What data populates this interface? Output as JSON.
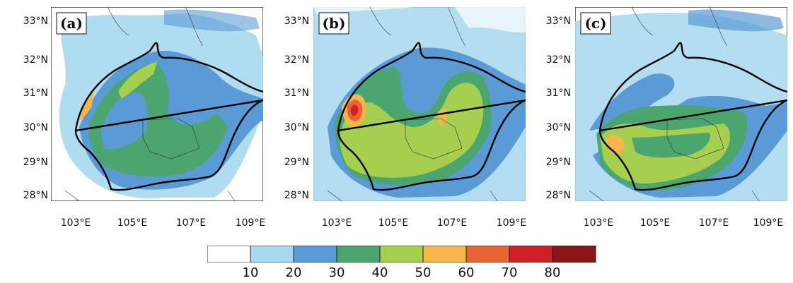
{
  "panels": [
    {
      "label": "(a)"
    },
    {
      "label": "(b)"
    },
    {
      "label": "(c)"
    }
  ],
  "lat_labels": [
    "33°N",
    "32°N",
    "31°N",
    "30°N",
    "29°N",
    "28°N"
  ],
  "lon_labels": [
    "103°E",
    "105°E",
    "107°E",
    "109°E"
  ],
  "colorbar": {
    "ticks": [
      "10",
      "20",
      "30",
      "40",
      "50",
      "60",
      "70",
      "80"
    ],
    "colors": [
      "#ffffff",
      "#a6d8f0",
      "#5b9bd5",
      "#4aa56e",
      "#a6cf50",
      "#f5b74a",
      "#ea6433",
      "#cf2027",
      "#8b1515"
    ]
  },
  "palette": {
    "c10": "#a6d8f0",
    "c20": "#5b9bd5",
    "c30": "#4aa56e",
    "c40": "#a6cf50",
    "c50": "#f5b74a",
    "c60": "#ea6433",
    "c70": "#cf2027"
  }
}
